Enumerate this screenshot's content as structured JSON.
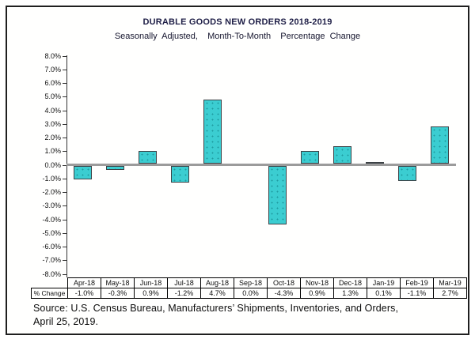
{
  "header": {
    "title": "DURABLE GOODS NEW ORDERS 2018-2019",
    "subtitle": "Seasonally Adjusted,  Month-To-Month  Percentage Change"
  },
  "chart_data": {
    "type": "bar",
    "title": "DURABLE GOODS NEW ORDERS 2018-2019",
    "subtitle": "Seasonally Adjusted, Month-To-Month Percentage Change",
    "categories": [
      "Apr-18",
      "May-18",
      "Jun-18",
      "Jul-18",
      "Aug-18",
      "Sep-18",
      "Oct-18",
      "Nov-18",
      "Dec-18",
      "Jan-19",
      "Feb-19",
      "Mar-19"
    ],
    "values": [
      -1.0,
      -0.3,
      0.9,
      -1.2,
      4.7,
      0.0,
      -4.3,
      0.9,
      1.3,
      0.1,
      -1.1,
      2.7
    ],
    "xlabel": "",
    "ylabel": "",
    "ylim": [
      -8,
      8
    ],
    "ytick_step": 1,
    "ytick_format": "0.0%",
    "grid": false,
    "legend": "none",
    "bar_color": "#3bcdd1",
    "bar_border_color": "#3d4246",
    "zero_line_color": "#9b9b9b"
  },
  "table": {
    "row_label": "% Change",
    "columns": [
      "Apr-18",
      "May-18",
      "Jun-18",
      "Jul-18",
      "Aug-18",
      "Sep-18",
      "Oct-18",
      "Nov-18",
      "Dec-18",
      "Jan-19",
      "Feb-19",
      "Mar-19"
    ],
    "values": [
      "-1.0%",
      "-0.3%",
      "0.9%",
      "-1.2%",
      "4.7%",
      "0.0%",
      "-4.3%",
      "0.9%",
      "1.3%",
      "0.1%",
      "-1.1%",
      "2.7%"
    ]
  },
  "source": {
    "line1": "Source: U.S. Census Bureau, Manufacturers’ Shipments, Inventories, and Orders,",
    "line2": "April 25, 2019."
  }
}
